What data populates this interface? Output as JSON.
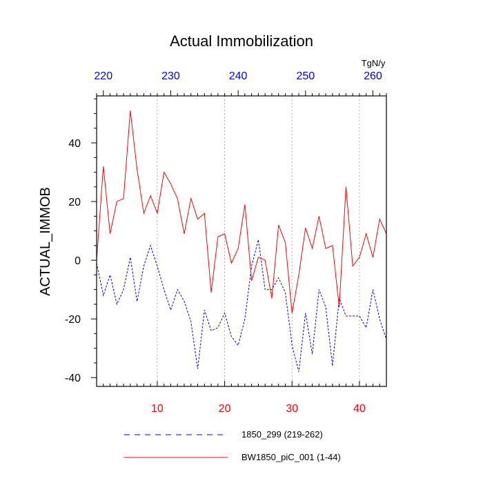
{
  "chart_data": {
    "type": "line",
    "title": "Actual Immobilization",
    "ylabel": "ACTUAL_IMMOB",
    "units": "TgN/y",
    "ylim": [
      -43,
      56
    ],
    "y_ticks": [
      "40",
      "20",
      "0",
      "-20",
      "-40"
    ],
    "y_tick_values": [
      40,
      20,
      0,
      -20,
      -40
    ],
    "x_bottom": {
      "range": [
        1,
        44
      ],
      "ticks": [
        "10",
        "20",
        "30",
        "40"
      ],
      "tick_values": [
        10,
        20,
        30,
        40
      ],
      "color": "#ff0000"
    },
    "x_top": {
      "range": [
        219,
        262
      ],
      "ticks": [
        "220",
        "230",
        "240",
        "250",
        "260"
      ],
      "tick_values": [
        220,
        230,
        240,
        250,
        260
      ],
      "color": "#0000ff"
    },
    "grid": "vertical dotted at bottom-axis ticks",
    "series": [
      {
        "name": "1850_299 (219-262)",
        "color": "#0000ff",
        "style": "dashed",
        "x": [
          1,
          2,
          3,
          4,
          5,
          6,
          7,
          8,
          9,
          10,
          11,
          12,
          13,
          14,
          15,
          16,
          17,
          18,
          19,
          20,
          21,
          22,
          23,
          24,
          25,
          26,
          27,
          28,
          29,
          30,
          31,
          32,
          33,
          34,
          35,
          36,
          37,
          38,
          39,
          40,
          41,
          42,
          43,
          44
        ],
        "values": [
          -1,
          -12,
          -5,
          -15,
          -10,
          1,
          -14,
          -2,
          5,
          -2,
          -10,
          -17,
          -10,
          -14,
          -21,
          -37,
          -17,
          -24,
          -23,
          -18,
          -26,
          -29,
          -20,
          -2,
          7,
          -10,
          -10,
          -6,
          -11,
          -29,
          -38,
          -18,
          -32,
          -10,
          -16,
          -36,
          -13,
          -19,
          -19,
          -19,
          -23,
          -10,
          -20,
          -27
        ]
      },
      {
        "name": "BW1850_piC_001 (1-44)",
        "color": "#ff0000",
        "style": "solid",
        "x": [
          1,
          2,
          3,
          4,
          5,
          6,
          7,
          8,
          9,
          10,
          11,
          12,
          13,
          14,
          15,
          16,
          17,
          18,
          19,
          20,
          21,
          22,
          23,
          24,
          25,
          26,
          27,
          28,
          29,
          30,
          31,
          32,
          33,
          34,
          35,
          36,
          37,
          38,
          39,
          40,
          41,
          42,
          43,
          44
        ],
        "values": [
          0,
          32,
          9,
          20,
          21,
          51,
          31,
          16,
          22,
          16,
          30,
          26,
          21,
          9,
          21,
          14,
          16,
          -11,
          8,
          9,
          -1,
          4,
          19,
          -7,
          1,
          0,
          -13,
          12,
          6,
          -18,
          -5,
          11,
          4,
          15,
          4,
          5,
          -16,
          25,
          -2,
          1,
          9,
          1,
          14,
          9
        ]
      }
    ]
  }
}
